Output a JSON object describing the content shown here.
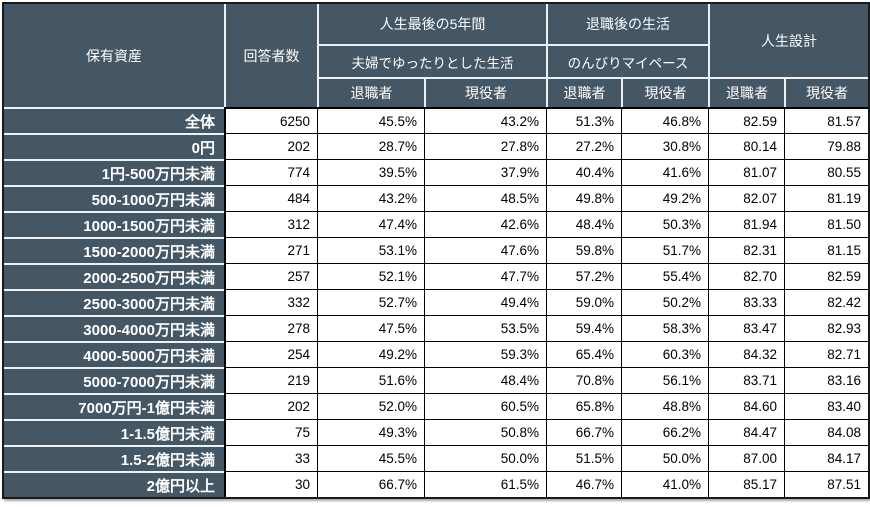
{
  "colors": {
    "header_bg": "#455665",
    "header_text": "#ffffff",
    "dark_grid_divider": "#eef2f5",
    "data_grid": "#000000",
    "data_bg": "#ffffff",
    "data_text": "#000000",
    "outer_border": "#1a1a1a"
  },
  "chart_data": {
    "type": "table",
    "header": {
      "assets_label": "保有資産",
      "respondents_label": "回答者数",
      "groups": [
        {
          "title": "人生最後の5年間",
          "subtitle": "夫婦でゆったりとした生活",
          "sub_cols": [
            "退職者",
            "現役者"
          ]
        },
        {
          "title": "退職後の生活",
          "subtitle": "のんびりマイペース",
          "sub_cols": [
            "退職者",
            "現役者"
          ]
        },
        {
          "title": "人生設計",
          "sub_cols": [
            "退職者",
            "現役者"
          ]
        }
      ]
    },
    "rows": [
      {
        "label": "全体",
        "n": "6250",
        "values": [
          "45.5%",
          "43.2%",
          "51.3%",
          "46.8%",
          "82.59",
          "81.57"
        ]
      },
      {
        "label": "0円",
        "n": "202",
        "values": [
          "28.7%",
          "27.8%",
          "27.2%",
          "30.8%",
          "80.14",
          "79.88"
        ]
      },
      {
        "label": "1円-500万円未満",
        "n": "774",
        "values": [
          "39.5%",
          "37.9%",
          "40.4%",
          "41.6%",
          "81.07",
          "80.55"
        ]
      },
      {
        "label": "500-1000万円未満",
        "n": "484",
        "values": [
          "43.2%",
          "48.5%",
          "49.8%",
          "49.2%",
          "82.07",
          "81.19"
        ]
      },
      {
        "label": "1000-1500万円未満",
        "n": "312",
        "values": [
          "47.4%",
          "42.6%",
          "48.4%",
          "50.3%",
          "81.94",
          "81.50"
        ]
      },
      {
        "label": "1500-2000万円未満",
        "n": "271",
        "values": [
          "53.1%",
          "47.6%",
          "59.8%",
          "51.7%",
          "82.31",
          "81.15"
        ]
      },
      {
        "label": "2000-2500万円未満",
        "n": "257",
        "values": [
          "52.1%",
          "47.7%",
          "57.2%",
          "55.4%",
          "82.70",
          "82.59"
        ]
      },
      {
        "label": "2500-3000万円未満",
        "n": "332",
        "values": [
          "52.7%",
          "49.4%",
          "59.0%",
          "50.2%",
          "83.33",
          "82.42"
        ]
      },
      {
        "label": "3000-4000万円未満",
        "n": "278",
        "values": [
          "47.5%",
          "53.5%",
          "59.4%",
          "58.3%",
          "83.47",
          "82.93"
        ]
      },
      {
        "label": "4000-5000万円未満",
        "n": "254",
        "values": [
          "49.2%",
          "59.3%",
          "65.4%",
          "60.3%",
          "84.32",
          "82.71"
        ]
      },
      {
        "label": "5000-7000万円未満",
        "n": "219",
        "values": [
          "51.6%",
          "48.4%",
          "70.8%",
          "56.1%",
          "83.71",
          "83.16"
        ]
      },
      {
        "label": "7000万円-1億円未満",
        "n": "202",
        "values": [
          "52.0%",
          "60.5%",
          "65.8%",
          "48.8%",
          "84.60",
          "83.40"
        ]
      },
      {
        "label": "1-1.5億円未満",
        "n": "75",
        "values": [
          "49.3%",
          "50.8%",
          "66.7%",
          "66.2%",
          "84.47",
          "84.08"
        ]
      },
      {
        "label": "1.5-2億円未満",
        "n": "33",
        "values": [
          "45.5%",
          "50.0%",
          "51.5%",
          "50.0%",
          "87.00",
          "84.17"
        ]
      },
      {
        "label": "2億円以上",
        "n": "30",
        "values": [
          "66.7%",
          "61.5%",
          "46.7%",
          "41.0%",
          "85.17",
          "87.51"
        ]
      }
    ]
  }
}
